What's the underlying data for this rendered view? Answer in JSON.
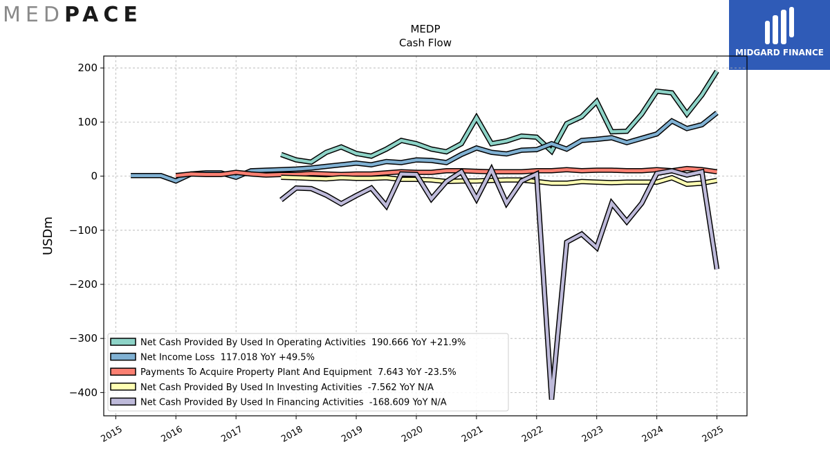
{
  "branding": {
    "left_logo_light": "MED",
    "left_logo_dark": "PACE",
    "right_logo_text": "MIDGARD FINANCE"
  },
  "chart_data": {
    "type": "line",
    "title": "MEDP",
    "subtitle": "Cash Flow",
    "xlabel": "",
    "ylabel": "USDm",
    "xlim": [
      2014.8,
      2025.5
    ],
    "ylim": [
      -443,
      222
    ],
    "x_ticks": [
      "2015",
      "2016",
      "2017",
      "2018",
      "2019",
      "2020",
      "2021",
      "2022",
      "2023",
      "2024",
      "2025"
    ],
    "y_ticks": [
      200,
      100,
      0,
      -100,
      -200,
      -300,
      -400
    ],
    "y_tick_labels": [
      "200",
      "100",
      "0",
      "−100",
      "−200",
      "−300",
      "−400"
    ],
    "grid": true,
    "legend_position": "bottom-left",
    "series": [
      {
        "name": "Net Cash Provided By Used In Operating Activities",
        "legend_label": "Net Cash Provided By Used In Operating Activities  190.666 YoY +21.9%",
        "color": "#8dd3c7",
        "x": [
          2017.75,
          2018.0,
          2018.25,
          2018.5,
          2018.75,
          2019.0,
          2019.25,
          2019.5,
          2019.75,
          2020.0,
          2020.25,
          2020.5,
          2020.75,
          2021.0,
          2021.25,
          2021.5,
          2021.75,
          2022.0,
          2022.25,
          2022.5,
          2022.75,
          2023.0,
          2023.25,
          2023.5,
          2023.75,
          2024.0,
          2024.25,
          2024.5,
          2024.75,
          2025.0
        ],
        "y": [
          40,
          30,
          26,
          44,
          54,
          42,
          37,
          50,
          66,
          60,
          50,
          45,
          60,
          108,
          60,
          65,
          74,
          72,
          46,
          97,
          110,
          138,
          82,
          83,
          115,
          157,
          154,
          115,
          150,
          194
        ]
      },
      {
        "name": "Net Income Loss",
        "legend_label": "Net Income Loss  117.018 YoY +49.5%",
        "color": "#80b1d3",
        "x": [
          2015.25,
          2015.5,
          2015.75,
          2016.0,
          2016.25,
          2016.5,
          2016.75,
          2017.0,
          2017.25,
          2017.5,
          2017.75,
          2018.0,
          2018.25,
          2018.5,
          2018.75,
          2019.0,
          2019.25,
          2019.5,
          2019.75,
          2020.0,
          2020.25,
          2020.5,
          2020.75,
          2021.0,
          2021.25,
          2021.5,
          2021.75,
          2022.0,
          2022.25,
          2022.5,
          2022.75,
          2023.0,
          2023.25,
          2023.5,
          2023.75,
          2024.0,
          2024.25,
          2024.5,
          2024.75,
          2025.0
        ],
        "y": [
          1,
          1,
          1,
          -9,
          4,
          6,
          6,
          -2,
          10,
          11,
          12,
          13,
          15,
          18,
          21,
          24,
          21,
          27,
          25,
          30,
          29,
          25,
          40,
          52,
          44,
          41,
          48,
          49,
          60,
          50,
          66,
          68,
          71,
          62,
          70,
          78,
          102,
          88,
          95,
          117
        ]
      },
      {
        "name": "Payments To Acquire Property Plant And Equipment",
        "legend_label": "Payments To Acquire Property Plant And Equipment  7.643 YoY -23.5%",
        "color": "#fb8072",
        "x": [
          2016.0,
          2016.25,
          2016.5,
          2016.75,
          2017.0,
          2017.25,
          2017.5,
          2017.75,
          2018.0,
          2018.25,
          2018.5,
          2018.75,
          2019.0,
          2019.25,
          2019.5,
          2019.75,
          2020.0,
          2020.25,
          2020.5,
          2020.75,
          2021.0,
          2021.25,
          2021.5,
          2021.75,
          2022.0,
          2022.25,
          2022.5,
          2022.75,
          2023.0,
          2023.25,
          2023.5,
          2023.75,
          2024.0,
          2024.25,
          2024.5,
          2024.75,
          2025.0
        ],
        "y": [
          1,
          4,
          3,
          3,
          7,
          4,
          2,
          3,
          3,
          5,
          4,
          3,
          4,
          4,
          6,
          8,
          7,
          7,
          10,
          10,
          9,
          8,
          8,
          8,
          10,
          10,
          12,
          10,
          11,
          11,
          10,
          10,
          12,
          10,
          14,
          12,
          8
        ]
      },
      {
        "name": "Net Cash Provided By Used In Investing Activities",
        "legend_label": "Net Cash Provided By Used In Investing Activities  -7.562 YoY N/A",
        "color": "#ffffb3",
        "x": [
          2017.75,
          2018.0,
          2018.25,
          2018.5,
          2018.75,
          2019.0,
          2019.25,
          2019.5,
          2019.75,
          2020.0,
          2020.25,
          2020.5,
          2020.75,
          2021.0,
          2021.25,
          2021.5,
          2021.75,
          2022.0,
          2022.25,
          2022.5,
          2022.75,
          2023.0,
          2023.25,
          2023.5,
          2023.75,
          2024.0,
          2024.25,
          2024.5,
          2024.75,
          2025.0
        ],
        "y": [
          -2,
          -3,
          -4,
          -5,
          -3,
          -4,
          -4,
          -3,
          -6,
          -6,
          -7,
          -10,
          -9,
          -9,
          -8,
          -7,
          -7,
          -10,
          -13,
          -13,
          -10,
          -11,
          -12,
          -11,
          -11,
          -11,
          -3,
          -15,
          -13,
          -8
        ]
      },
      {
        "name": "Net Cash Provided By Used In Financing Activities",
        "legend_label": "Net Cash Provided By Used In Financing Activities  -168.609 YoY N/A",
        "color": "#bebada",
        "x": [
          2017.75,
          2018.0,
          2018.25,
          2018.5,
          2018.75,
          2019.0,
          2019.25,
          2019.5,
          2019.75,
          2020.0,
          2020.25,
          2020.5,
          2020.75,
          2021.0,
          2021.25,
          2021.5,
          2021.75,
          2022.0,
          2022.25,
          2022.5,
          2022.75,
          2023.0,
          2023.25,
          2023.5,
          2023.75,
          2024.0,
          2024.25,
          2024.5,
          2024.75,
          2025.0
        ],
        "y": [
          -44,
          -22,
          -23,
          -35,
          -51,
          -36,
          -22,
          -55,
          4,
          3,
          -42,
          -10,
          8,
          -42,
          12,
          -50,
          -9,
          4,
          -413,
          -122,
          -107,
          -132,
          -50,
          -84,
          -50,
          5,
          10,
          2,
          8,
          -172
        ]
      }
    ]
  }
}
